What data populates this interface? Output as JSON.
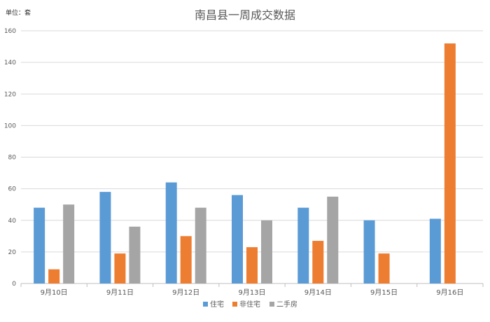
{
  "chart_data": {
    "type": "bar",
    "title": "南昌县一周成交数据",
    "unit_label": "单位：套",
    "categories": [
      "9月10日",
      "9月11日",
      "9月12日",
      "9月13日",
      "9月14日",
      "9月15日",
      "9月16日"
    ],
    "series": [
      {
        "name": "住宅",
        "color": "#5b9bd5",
        "values": [
          48,
          58,
          64,
          56,
          48,
          40,
          41
        ]
      },
      {
        "name": "非住宅",
        "color": "#ed7d31",
        "values": [
          9,
          19,
          30,
          23,
          27,
          19,
          152
        ]
      },
      {
        "name": "二手房",
        "color": "#a5a5a5",
        "values": [
          50,
          36,
          48,
          40,
          55,
          null,
          null
        ]
      }
    ],
    "ylim": [
      0,
      160
    ],
    "yticks": [
      0,
      20,
      40,
      60,
      80,
      100,
      120,
      140,
      160
    ],
    "grid": true,
    "legend_position": "bottom",
    "xlabel": "",
    "ylabel": ""
  }
}
